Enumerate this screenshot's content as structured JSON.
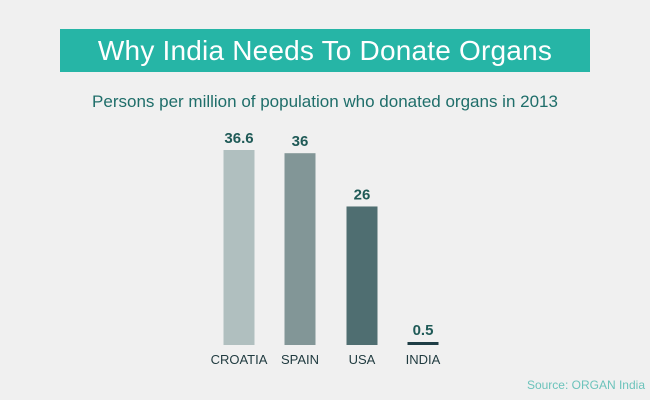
{
  "header": {
    "title": "Why India Needs To Donate Organs",
    "subtitle": "Persons per million of population who donated organs in 2013"
  },
  "footer": {
    "source": "Source: ORGAN India"
  },
  "colors": {
    "banner": "#26b5a6",
    "value_label": "#1f5a57",
    "category_label": "#1f3a3f"
  },
  "chart_data": {
    "type": "bar",
    "title": "Why India Needs To Donate Organs",
    "subtitle": "Persons per million of population who donated organs in 2013",
    "categories": [
      "CROATIA",
      "SPAIN",
      "USA",
      "INDIA"
    ],
    "values": [
      36.6,
      36,
      26,
      0.5
    ],
    "value_labels": [
      "36.6",
      "36",
      "26",
      "0.5"
    ],
    "bar_colors": [
      "#b0bfbf",
      "#829697",
      "#4f6e71",
      "#1e3d45"
    ],
    "xlabel": "",
    "ylabel": "",
    "ylim": [
      0,
      36.6
    ],
    "grid": false,
    "legend": "none"
  }
}
